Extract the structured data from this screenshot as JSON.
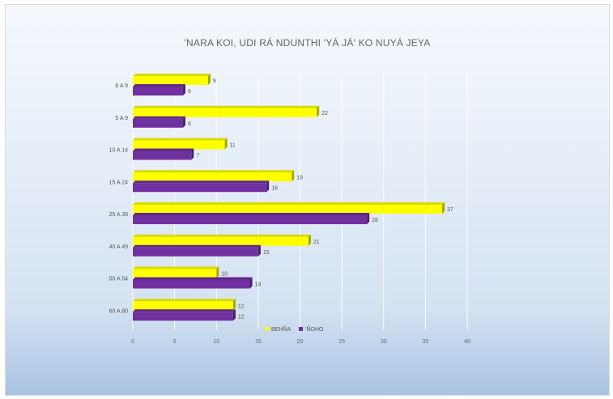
{
  "chart_data": {
    "type": "bar",
    "orientation": "horizontal",
    "style": "3d",
    "title": "'NARA KOI, UDI RÁ NDUNTHI 'YÁ JÁ' KO NUYÁ JEYA",
    "categories": [
      "6 A 9",
      "5 A 9",
      "10 A 14",
      "15 A 24",
      "25 A 39",
      "40 A 49",
      "50 A 54",
      "60 A 80"
    ],
    "series": [
      {
        "name": "BEHÑA",
        "color": "#ffff00",
        "values": [
          9,
          22,
          11,
          19,
          37,
          21,
          10,
          12
        ]
      },
      {
        "name": "'ÑOHO",
        "color": "#7030a0",
        "values": [
          6,
          6,
          7,
          16,
          28,
          15,
          14,
          12
        ]
      }
    ],
    "xlim": [
      0,
      40
    ],
    "xticks": [
      "0",
      "5",
      "10",
      "15",
      "20",
      "25",
      "30",
      "35",
      "40"
    ],
    "grid": true,
    "legend": "bottom-center"
  }
}
